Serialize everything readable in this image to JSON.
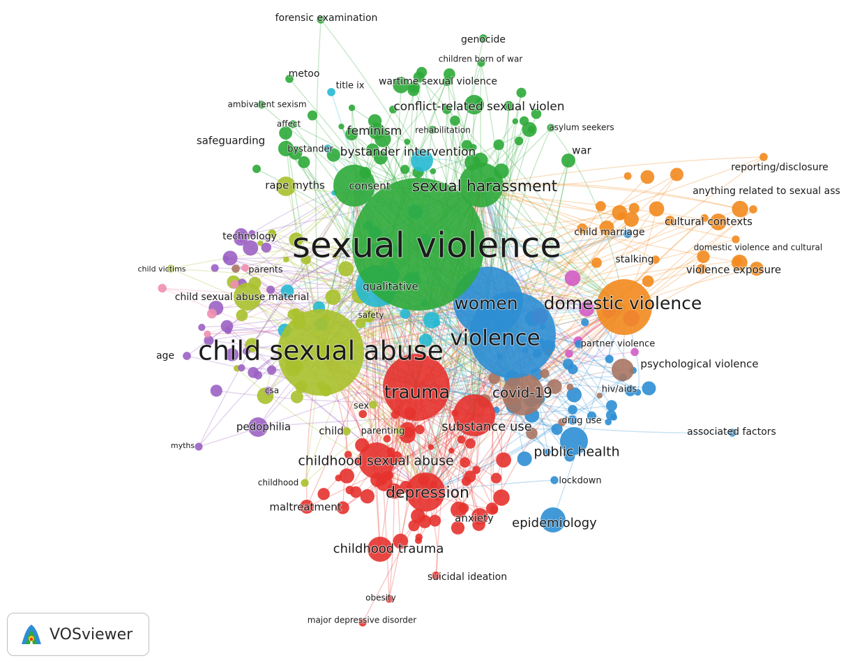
{
  "tool_badge": {
    "label": "VOSviewer"
  },
  "colors": {
    "red": "#e5322d",
    "green": "#2eaa3a",
    "blue": "#2e8ed3",
    "yellow": "#a8c12c",
    "purple": "#9b62c3",
    "cyan": "#27b9d1",
    "orange": "#f28a1e",
    "brown": "#a97563",
    "pink": "#f08fb0",
    "magenta": "#d35cc4"
  },
  "chart_data": {
    "type": "network",
    "title": "",
    "nodes": [
      {
        "label": "sexual violence",
        "cluster": "green",
        "weight": 100
      },
      {
        "label": "child sexual abuse",
        "cluster": "yellow",
        "weight": 70
      },
      {
        "label": "violence",
        "cluster": "blue",
        "weight": 45
      },
      {
        "label": "women",
        "cluster": "blue",
        "weight": 38
      },
      {
        "label": "domestic violence",
        "cluster": "orange",
        "weight": 35
      },
      {
        "label": "trauma",
        "cluster": "red",
        "weight": 38
      },
      {
        "label": "sexual harassment",
        "cluster": "green",
        "weight": 30
      },
      {
        "label": "depression",
        "cluster": "red",
        "weight": 26
      },
      {
        "label": "childhood sexual abuse",
        "cluster": "red",
        "weight": 22
      },
      {
        "label": "covid-19",
        "cluster": "brown",
        "weight": 22
      },
      {
        "label": "public health",
        "cluster": "blue",
        "weight": 18
      },
      {
        "label": "substance use",
        "cluster": "red",
        "weight": 17
      },
      {
        "label": "epidemiology",
        "cluster": "blue",
        "weight": 15
      },
      {
        "label": "childhood trauma",
        "cluster": "red",
        "weight": 14
      },
      {
        "label": "conflict-related sexual violen",
        "cluster": "green",
        "weight": 14
      },
      {
        "label": "bystander intervention",
        "cluster": "cyan",
        "weight": 14
      },
      {
        "label": "feminism",
        "cluster": "green",
        "weight": 12
      },
      {
        "label": "cultural contexts",
        "cluster": "orange",
        "weight": 11
      },
      {
        "label": "rape myths",
        "cluster": "yellow",
        "weight": 11
      },
      {
        "label": "consent",
        "cluster": "green",
        "weight": 10
      },
      {
        "label": "pedophilia",
        "cluster": "purple",
        "weight": 10
      },
      {
        "label": "maltreatment",
        "cluster": "red",
        "weight": 10
      },
      {
        "label": "anxiety",
        "cluster": "red",
        "weight": 10
      },
      {
        "label": "qualitative",
        "cluster": "cyan",
        "weight": 10
      },
      {
        "label": "child sexual abuse material",
        "cluster": "yellow",
        "weight": 9
      },
      {
        "label": "violence exposure",
        "cluster": "orange",
        "weight": 9
      },
      {
        "label": "psychological violence",
        "cluster": "brown",
        "weight": 9
      },
      {
        "label": "war",
        "cluster": "green",
        "weight": 9
      },
      {
        "label": "safeguarding",
        "cluster": "green",
        "weight": 8
      },
      {
        "label": "technology",
        "cluster": "yellow",
        "weight": 8
      },
      {
        "label": "child marriage",
        "cluster": "blue",
        "weight": 8
      },
      {
        "label": "suicidal ideation",
        "cluster": "red",
        "weight": 8
      },
      {
        "label": "wartime sexual violence",
        "cluster": "green",
        "weight": 8
      },
      {
        "label": "stalking",
        "cluster": "orange",
        "weight": 7
      },
      {
        "label": "parents",
        "cluster": "brown",
        "weight": 7
      },
      {
        "label": "child",
        "cluster": "yellow",
        "weight": 7
      },
      {
        "label": "age",
        "cluster": "purple",
        "weight": 7
      },
      {
        "label": "genocide",
        "cluster": "green",
        "weight": 7
      },
      {
        "label": "metoo",
        "cluster": "green",
        "weight": 7
      },
      {
        "label": "title ix",
        "cluster": "cyan",
        "weight": 7
      },
      {
        "label": "bystander",
        "cluster": "cyan",
        "weight": 7
      },
      {
        "label": "reporting/disclosure",
        "cluster": "orange",
        "weight": 7
      },
      {
        "label": "anything related to sexual ass",
        "cluster": "orange",
        "weight": 7
      },
      {
        "label": "partner violence",
        "cluster": "blue",
        "weight": 6
      },
      {
        "label": "hiv/aids",
        "cluster": "blue",
        "weight": 6
      },
      {
        "label": "drug use",
        "cluster": "brown",
        "weight": 6
      },
      {
        "label": "lockdown",
        "cluster": "blue",
        "weight": 6
      },
      {
        "label": "associated factors",
        "cluster": "blue",
        "weight": 6
      },
      {
        "label": "forensic examination",
        "cluster": "green",
        "weight": 6
      },
      {
        "label": "sex",
        "cluster": "yellow",
        "weight": 6
      },
      {
        "label": "csa",
        "cluster": "purple",
        "weight": 6
      },
      {
        "label": "safety",
        "cluster": "yellow",
        "weight": 6
      },
      {
        "label": "parenting",
        "cluster": "yellow",
        "weight": 6
      },
      {
        "label": "childhood",
        "cluster": "yellow",
        "weight": 5
      },
      {
        "label": "obesity",
        "cluster": "red",
        "weight": 5
      },
      {
        "label": "major depressive disorder",
        "cluster": "red",
        "weight": 5
      },
      {
        "label": "myths",
        "cluster": "purple",
        "weight": 5
      },
      {
        "label": "child victims",
        "cluster": "yellow",
        "weight": 5
      },
      {
        "label": "children born of war",
        "cluster": "green",
        "weight": 5
      },
      {
        "label": "ambivalent sexism",
        "cluster": "green",
        "weight": 5
      },
      {
        "label": "affect",
        "cluster": "green",
        "weight": 5
      },
      {
        "label": "rehabilitation",
        "cluster": "green",
        "weight": 5
      },
      {
        "label": "asylum seekers",
        "cluster": "green",
        "weight": 5
      },
      {
        "label": "domestic violence and cultural",
        "cluster": "orange",
        "weight": 5
      }
    ]
  }
}
